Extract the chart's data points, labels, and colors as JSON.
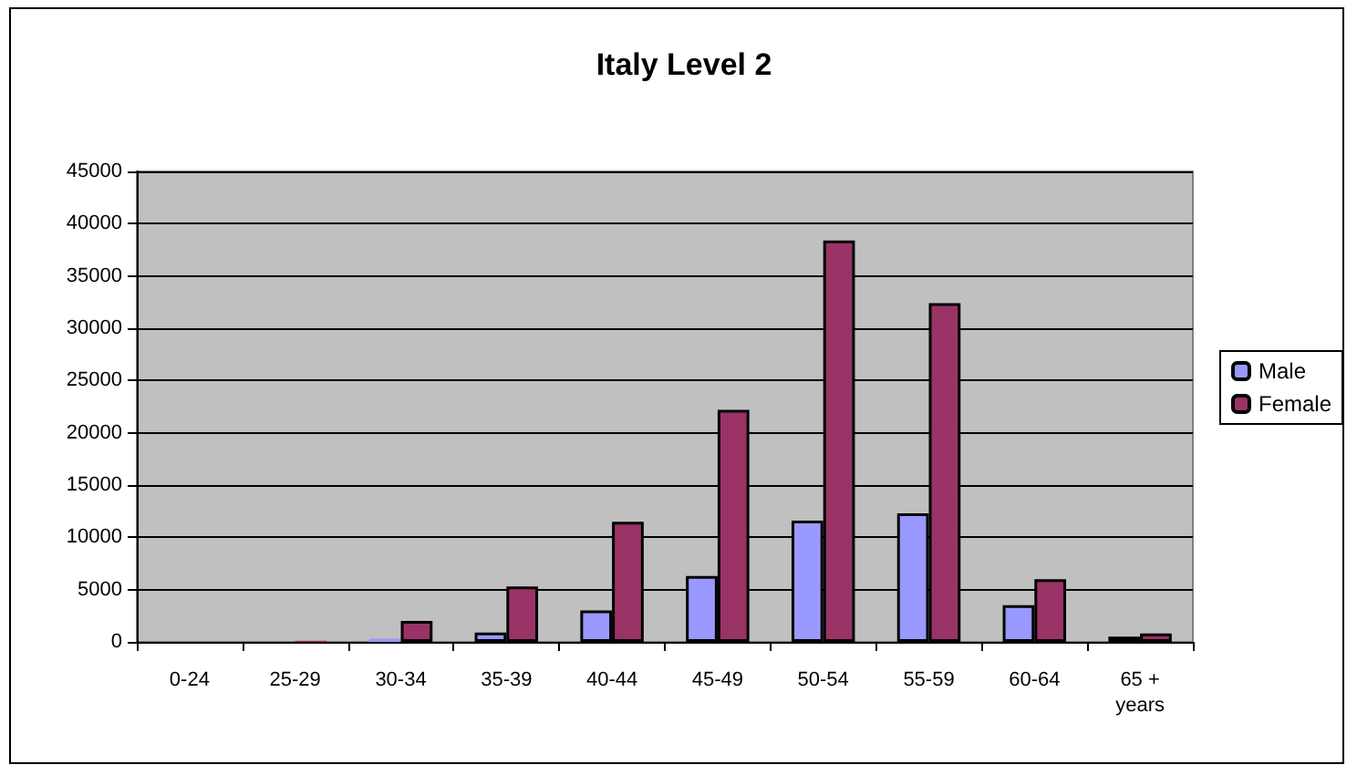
{
  "chart_data": {
    "type": "bar",
    "title": "Italy Level 2",
    "categories": [
      "0-24",
      "25-29",
      "30-34",
      "35-39",
      "40-44",
      "45-49",
      "50-54",
      "55-59",
      "60-64",
      "65 + years"
    ],
    "series": [
      {
        "name": "Male",
        "color": "#9999ff",
        "values": [
          0,
          0,
          300,
          900,
          3000,
          6300,
          11600,
          12300,
          3500,
          500
        ]
      },
      {
        "name": "Female",
        "color": "#993366",
        "values": [
          0,
          100,
          2000,
          5300,
          11500,
          22200,
          38400,
          32400,
          6000,
          800
        ]
      }
    ],
    "ylim": [
      0,
      45000
    ],
    "yticks": [
      0,
      5000,
      10000,
      15000,
      20000,
      25000,
      30000,
      35000,
      40000,
      45000
    ],
    "grid": "y",
    "legend": "right"
  }
}
